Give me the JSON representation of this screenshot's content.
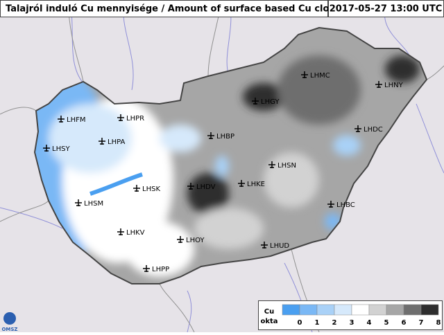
{
  "header": {
    "title": "Talajról induló Cu mennyisége / Amount of surface based Cu clouds",
    "timestamp": "2017-05-27 13:00 UTC"
  },
  "airports": [
    "LHFM",
    "LHPR",
    "LHSY",
    "LHPA",
    "LHBP",
    "LHSK",
    "LHDV",
    "LHKE",
    "LHSN",
    "LHSM",
    "LHKV",
    "LHOY",
    "LHUD",
    "LHPP",
    "LHMC",
    "LHGY",
    "LHNY",
    "LHDC",
    "LHBC"
  ],
  "legend": {
    "title": [
      "Cu",
      "okta"
    ],
    "ticks": [
      0,
      1,
      2,
      3,
      4,
      5,
      6,
      7,
      8
    ],
    "colors": [
      "#4a9ff0",
      "#7ab8f5",
      "#a9d1f7",
      "#d6e9fb",
      "#ffffff",
      "#d2d2d2",
      "#a6a6a6",
      "#6e6e6e",
      "#2e2e2e"
    ]
  },
  "logo": "OMSZ"
}
